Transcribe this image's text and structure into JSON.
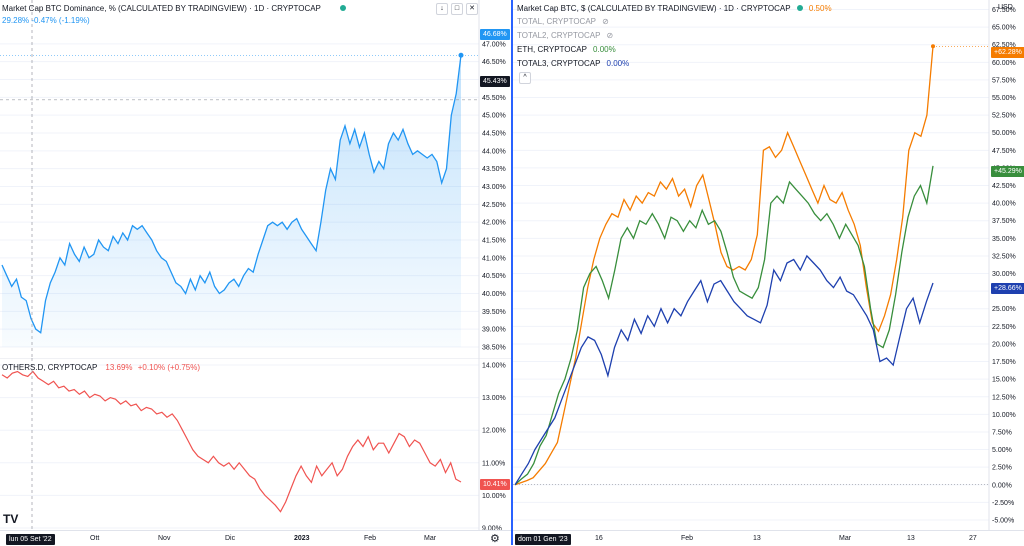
{
  "left": {
    "top": {
      "title": "Market Cap BTC Dominance, % (CALCULATED BY TRADINGVIEW) · 1D · CRYPTOCAP",
      "change": "29.28%  -0.47% (-1.19%)",
      "last_badge": "46.68%",
      "crosshair_badge": "45.43%"
    },
    "bottom": {
      "label": "OTHERS.D, CRYPTOCAP",
      "value": "13.69%",
      "change": "+0.10% (+0.75%)",
      "last_badge": "10.41%"
    },
    "time_badge": "lun 05 Set '22"
  },
  "right": {
    "title": "Market Cap BTC, $ (CALCULATED BY TRADINGVIEW) · 1D · CRYPTOCAP",
    "title_value": "0.50%",
    "currency": "USD",
    "legend": [
      {
        "label": "TOTAL, CRYPTOCAP",
        "value": "",
        "hidden": true,
        "icon": "eye-off-icon"
      },
      {
        "label": "TOTAL2, CRYPTOCAP",
        "value": "",
        "hidden": true,
        "icon": "eye-off-icon"
      },
      {
        "label": "ETH, CRYPTOCAP",
        "value": "0.00%",
        "color": "#388e3c"
      },
      {
        "label": "TOTAL3, CRYPTOCAP",
        "value": "0.00%",
        "color": "#1e40af"
      }
    ],
    "time_badge": "dom 01 Gen '23",
    "badges": [
      "+62.28%",
      "+45.29%",
      "+28.66%"
    ]
  },
  "chart_data": [
    {
      "type": "area",
      "title": "Market Cap BTC Dominance, % (CALCULATED BY TRADINGVIEW)",
      "ylim": [
        38.5,
        47.5
      ],
      "yticks": [
        "47.00%",
        "46.50%",
        "46.00%",
        "45.50%",
        "45.00%",
        "44.50%",
        "44.00%",
        "43.50%",
        "43.00%",
        "42.50%",
        "42.00%",
        "41.50%",
        "41.00%",
        "40.50%",
        "40.00%",
        "39.50%",
        "39.00%",
        "38.50%"
      ],
      "xticks": [
        "Ott",
        "Nov",
        "Dic",
        "2023",
        "Feb",
        "Mar"
      ],
      "color": "#2196f3",
      "values": [
        40.8,
        40.5,
        40.2,
        40.4,
        39.9,
        39.8,
        39.3,
        39.0,
        38.9,
        39.8,
        40.3,
        40.6,
        41.0,
        40.8,
        41.4,
        41.1,
        40.9,
        41.3,
        41.0,
        41.1,
        41.5,
        41.3,
        41.2,
        41.6,
        41.4,
        41.7,
        41.5,
        41.9,
        41.8,
        41.9,
        41.7,
        41.5,
        41.2,
        41.0,
        40.9,
        40.6,
        40.3,
        40.2,
        40.0,
        40.4,
        40.1,
        40.5,
        40.3,
        40.6,
        40.2,
        40.0,
        40.1,
        40.3,
        40.4,
        40.2,
        40.5,
        40.7,
        40.6,
        41.1,
        41.5,
        41.9,
        42.0,
        41.9,
        42.0,
        41.8,
        42.0,
        42.1,
        41.8,
        41.6,
        41.4,
        41.2,
        42.0,
        42.9,
        43.5,
        43.2,
        44.3,
        44.7,
        44.2,
        44.6,
        44.1,
        44.5,
        43.9,
        43.4,
        43.7,
        43.5,
        44.2,
        44.5,
        44.3,
        44.6,
        44.2,
        43.9,
        44.0,
        43.9,
        43.8,
        43.9,
        43.7,
        43.1,
        43.5,
        45.0,
        45.6,
        46.68
      ]
    },
    {
      "type": "line",
      "title": "OTHERS.D, CRYPTOCAP",
      "ylim": [
        9.0,
        14.0
      ],
      "yticks": [
        "14.00%",
        "13.00%",
        "12.00%",
        "11.00%",
        "10.00%",
        "9.00%"
      ],
      "color": "#f05350",
      "values": [
        13.7,
        13.6,
        13.75,
        13.8,
        13.7,
        13.65,
        13.8,
        13.6,
        13.5,
        13.4,
        13.5,
        13.3,
        13.35,
        13.2,
        13.25,
        13.1,
        13.2,
        13.0,
        13.1,
        13.05,
        12.9,
        13.0,
        12.95,
        12.8,
        12.9,
        12.75,
        12.8,
        12.6,
        12.7,
        12.65,
        12.5,
        12.55,
        12.4,
        12.5,
        12.3,
        12.0,
        11.7,
        11.4,
        11.2,
        11.1,
        11.0,
        11.2,
        11.0,
        10.9,
        11.0,
        10.8,
        11.0,
        10.8,
        10.6,
        10.5,
        10.2,
        10.0,
        9.85,
        9.7,
        9.5,
        9.8,
        10.2,
        10.6,
        10.9,
        10.6,
        10.4,
        10.9,
        10.6,
        10.8,
        11.0,
        10.6,
        10.8,
        11.2,
        11.5,
        11.7,
        11.5,
        11.8,
        11.4,
        11.6,
        11.6,
        11.3,
        11.6,
        11.9,
        11.8,
        11.5,
        11.7,
        11.6,
        11.3,
        11.0,
        10.9,
        11.1,
        10.7,
        11.0,
        10.5,
        10.41
      ]
    },
    {
      "type": "line",
      "title": "Market Cap BTC, $ (CALCULATED BY TRADINGVIEW)",
      "ylim": [
        -6,
        68
      ],
      "yticks": [
        "67.50%",
        "65.00%",
        "62.50%",
        "60.00%",
        "57.50%",
        "55.00%",
        "52.50%",
        "50.00%",
        "47.50%",
        "45.00%",
        "42.50%",
        "40.00%",
        "37.50%",
        "35.00%",
        "32.50%",
        "30.00%",
        "27.50%",
        "25.00%",
        "22.50%",
        "20.00%",
        "17.50%",
        "15.00%",
        "12.50%",
        "10.00%",
        "7.50%",
        "5.00%",
        "2.50%",
        "0.00%",
        "-2.50%",
        "-5.00%"
      ],
      "xticks": [
        "16",
        "Feb",
        "13",
        "Mar",
        "13",
        "27"
      ],
      "series": [
        {
          "name": "",
          "color": "#f57c00",
          "values": [
            0,
            0.3,
            0.6,
            1.0,
            2.0,
            3.0,
            4.5,
            6.0,
            10.0,
            14.0,
            18.0,
            23.0,
            28.0,
            32.0,
            35.0,
            37.0,
            38.5,
            38.0,
            40.5,
            39.0,
            41.0,
            40.0,
            41.5,
            41.0,
            43.0,
            42.0,
            43.5,
            41.0,
            42.0,
            39.5,
            42.5,
            44.0,
            40.5,
            37.0,
            33.0,
            31.0,
            30.5,
            31.0,
            30.5,
            32.0,
            35.5,
            47.5,
            48.0,
            46.5,
            47.5,
            50.0,
            48.0,
            46.0,
            44.0,
            42.0,
            40.0,
            42.5,
            40.5,
            40.0,
            41.5,
            39.0,
            37.0,
            34.0,
            28.0,
            23.0,
            21.8,
            24.0,
            27.0,
            32.0,
            38.0,
            47.5,
            50.0,
            49.5,
            52.5,
            62.28
          ]
        },
        {
          "name": "ETH, CRYPTOCAP",
          "color": "#388e3c",
          "values": [
            0,
            0.8,
            1.5,
            3.0,
            5.5,
            7.0,
            10.0,
            13.0,
            15.0,
            18.0,
            22.0,
            28.0,
            30.0,
            31.0,
            29.0,
            26.5,
            30.5,
            35.0,
            36.5,
            35.0,
            37.5,
            37.0,
            38.5,
            37.0,
            35.0,
            38.0,
            37.5,
            36.0,
            37.5,
            36.5,
            39.0,
            37.0,
            37.5,
            36.0,
            33.0,
            29.5,
            27.5,
            27.0,
            26.5,
            28.0,
            32.0,
            40.0,
            41.0,
            40.0,
            43.0,
            42.0,
            41.0,
            40.0,
            38.5,
            37.5,
            38.5,
            37.0,
            35.0,
            37.0,
            35.5,
            34.0,
            31.0,
            25.0,
            20.0,
            19.5,
            22.0,
            27.0,
            33.0,
            38.0,
            41.0,
            42.5,
            40.0,
            45.29
          ]
        },
        {
          "name": "TOTAL3, CRYPTOCAP",
          "color": "#1e40af",
          "values": [
            0,
            1.5,
            3.0,
            5.0,
            6.5,
            8.0,
            9.5,
            12.0,
            14.5,
            17.0,
            19.5,
            21.0,
            20.5,
            18.5,
            15.5,
            19.5,
            22.0,
            20.5,
            23.5,
            21.5,
            24.0,
            22.5,
            25.0,
            23.0,
            25.0,
            24.0,
            26.0,
            27.5,
            29.0,
            26.0,
            28.5,
            29.0,
            27.5,
            26.0,
            25.0,
            24.0,
            23.5,
            23.0,
            25.5,
            30.5,
            29.0,
            31.5,
            32.0,
            30.5,
            32.5,
            31.5,
            30.5,
            29.0,
            28.0,
            29.5,
            27.5,
            27.0,
            25.5,
            24.0,
            22.0,
            17.5,
            18.0,
            17.0,
            21.0,
            25.0,
            26.5,
            23.0,
            26.0,
            28.66
          ]
        }
      ]
    }
  ]
}
